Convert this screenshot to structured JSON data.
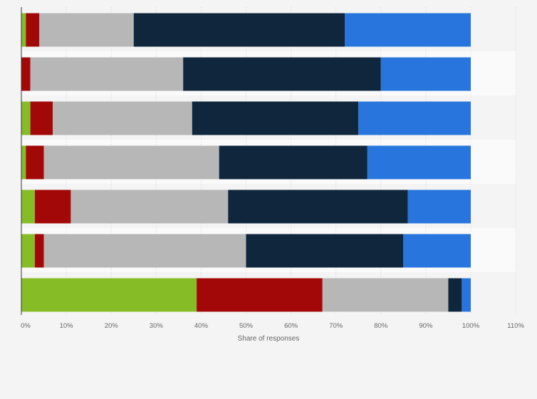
{
  "chart_data": {
    "type": "bar",
    "orientation": "horizontal",
    "stacked": true,
    "title": "",
    "xlabel": "Share of responses",
    "ylabel": "",
    "xlim": [
      0,
      110
    ],
    "x_ticks": [
      "0%",
      "10%",
      "20%",
      "30%",
      "40%",
      "50%",
      "60%",
      "70%",
      "80%",
      "90%",
      "100%",
      "110%"
    ],
    "grid": true,
    "legend": "none",
    "categories": [
      "",
      "",
      "",
      "",
      "",
      "",
      ""
    ],
    "series": [
      {
        "color": "#86bc25",
        "values": [
          1,
          0,
          2,
          1,
          3,
          3,
          39
        ]
      },
      {
        "color": "#a30808",
        "values": [
          3,
          2,
          5,
          4,
          8,
          2,
          28
        ]
      },
      {
        "color": "#b7b7b7",
        "values": [
          21,
          34,
          31,
          39,
          35,
          45,
          28
        ]
      },
      {
        "color": "#0f263d",
        "values": [
          47,
          44,
          37,
          33,
          40,
          35,
          3
        ]
      },
      {
        "color": "#2876dd",
        "values": [
          28,
          20,
          25,
          23,
          14,
          15,
          2
        ]
      }
    ]
  }
}
